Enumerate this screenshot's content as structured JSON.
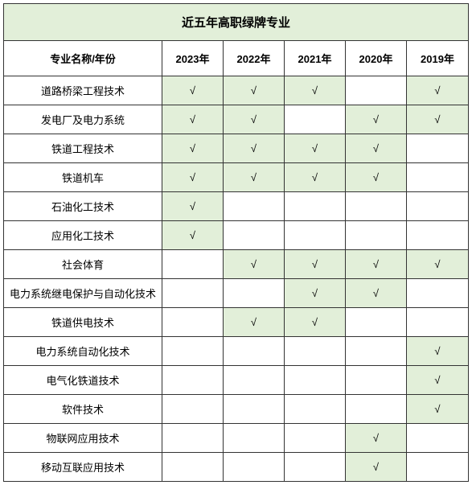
{
  "table": {
    "title": "近五年高职绿牌专业",
    "header_name": "专业名称/年份",
    "years": [
      "2023年",
      "2022年",
      "2021年",
      "2020年",
      "2019年"
    ],
    "check_mark": "√",
    "colors": {
      "highlight_bg": "#e2efd9",
      "normal_bg": "#ffffff",
      "border": "#333333"
    },
    "column_widths": {
      "name": 197,
      "year": 76
    },
    "rows": [
      {
        "name": "道路桥梁工程技术",
        "checks": [
          true,
          true,
          true,
          false,
          true
        ]
      },
      {
        "name": "发电厂及电力系统",
        "checks": [
          true,
          true,
          false,
          true,
          true
        ]
      },
      {
        "name": "铁道工程技术",
        "checks": [
          true,
          true,
          true,
          true,
          false
        ]
      },
      {
        "name": "铁道机车",
        "checks": [
          true,
          true,
          true,
          true,
          false
        ]
      },
      {
        "name": "石油化工技术",
        "checks": [
          true,
          false,
          false,
          false,
          false
        ]
      },
      {
        "name": "应用化工技术",
        "checks": [
          true,
          false,
          false,
          false,
          false
        ]
      },
      {
        "name": "社会体育",
        "checks": [
          false,
          true,
          true,
          true,
          true
        ]
      },
      {
        "name": "电力系统继电保护与自动化技术",
        "checks": [
          false,
          false,
          true,
          true,
          false
        ]
      },
      {
        "name": "铁道供电技术",
        "checks": [
          false,
          true,
          true,
          false,
          false
        ]
      },
      {
        "name": "电力系统自动化技术",
        "checks": [
          false,
          false,
          false,
          false,
          true
        ]
      },
      {
        "name": "电气化铁道技术",
        "checks": [
          false,
          false,
          false,
          false,
          true
        ]
      },
      {
        "name": "软件技术",
        "checks": [
          false,
          false,
          false,
          false,
          true
        ]
      },
      {
        "name": "物联网应用技术",
        "checks": [
          false,
          false,
          false,
          true,
          false
        ]
      },
      {
        "name": "移动互联应用技术",
        "checks": [
          false,
          false,
          false,
          true,
          false
        ]
      }
    ]
  }
}
